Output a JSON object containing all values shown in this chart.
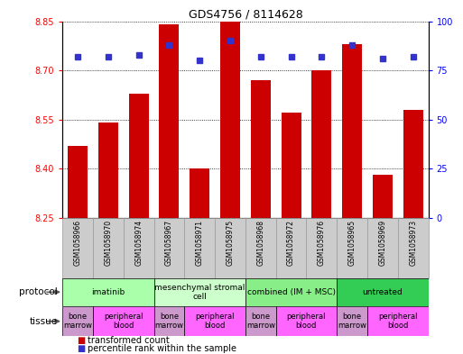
{
  "title": "GDS4756 / 8114628",
  "samples": [
    "GSM1058966",
    "GSM1058970",
    "GSM1058974",
    "GSM1058967",
    "GSM1058971",
    "GSM1058975",
    "GSM1058968",
    "GSM1058972",
    "GSM1058976",
    "GSM1058965",
    "GSM1058969",
    "GSM1058973"
  ],
  "bar_tops": [
    8.47,
    8.54,
    8.63,
    8.84,
    8.4,
    8.85,
    8.67,
    8.57,
    8.7,
    8.78,
    8.38,
    8.58
  ],
  "percentile_rank": [
    82,
    82,
    83,
    88,
    80,
    90,
    82,
    82,
    82,
    88,
    81,
    82
  ],
  "ylim": [
    8.25,
    8.85
  ],
  "yticks_left": [
    8.25,
    8.4,
    8.55,
    8.7,
    8.85
  ],
  "yticks_right": [
    0,
    25,
    50,
    75,
    100
  ],
  "bar_color": "#cc0000",
  "dot_color": "#3333cc",
  "protocol_groups": [
    {
      "label": "imatinib",
      "start": 0,
      "end": 3,
      "color": "#aaffaa"
    },
    {
      "label": "mesenchymal stromal\ncell",
      "start": 3,
      "end": 6,
      "color": "#ccffcc"
    },
    {
      "label": "combined (IM + MSC)",
      "start": 6,
      "end": 9,
      "color": "#88ee88"
    },
    {
      "label": "untreated",
      "start": 9,
      "end": 12,
      "color": "#33cc55"
    }
  ],
  "tissue_groups": [
    {
      "label": "bone\nmarrow",
      "start": 0,
      "end": 1,
      "color": "#cc99cc"
    },
    {
      "label": "peripheral\nblood",
      "start": 1,
      "end": 3,
      "color": "#ff66ff"
    },
    {
      "label": "bone\nmarrow",
      "start": 3,
      "end": 4,
      "color": "#cc99cc"
    },
    {
      "label": "peripheral\nblood",
      "start": 4,
      "end": 6,
      "color": "#ff66ff"
    },
    {
      "label": "bone\nmarrow",
      "start": 6,
      "end": 7,
      "color": "#cc99cc"
    },
    {
      "label": "peripheral\nblood",
      "start": 7,
      "end": 9,
      "color": "#ff66ff"
    },
    {
      "label": "bone\nmarrow",
      "start": 9,
      "end": 10,
      "color": "#cc99cc"
    },
    {
      "label": "peripheral\nblood",
      "start": 10,
      "end": 12,
      "color": "#ff66ff"
    }
  ],
  "legend_items": [
    {
      "label": "transformed count",
      "color": "#cc0000"
    },
    {
      "label": "percentile rank within the sample",
      "color": "#3333cc"
    }
  ],
  "sample_box_color": "#cccccc",
  "sample_box_edge": "#999999"
}
